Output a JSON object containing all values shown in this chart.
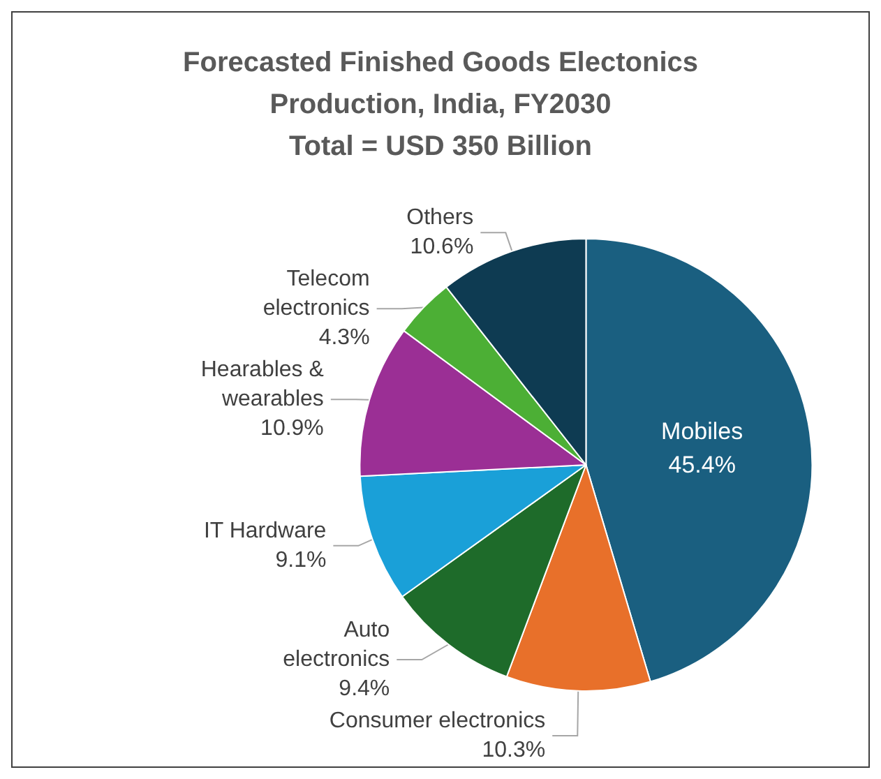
{
  "chart_data": {
    "type": "pie",
    "title": "Forecasted Finished Goods Electonics\nProduction, India, FY2030\nTotal = USD 350 Billion",
    "categories": [
      "Mobiles",
      "Consumer electronics",
      "Auto\nelectronics",
      "IT Hardware",
      "Hearables &\nwearables",
      "Telecom\nelectronics",
      "Others"
    ],
    "values": [
      45.4,
      10.3,
      9.4,
      9.1,
      10.9,
      4.3,
      10.6
    ],
    "colors": [
      "#1a5f80",
      "#e8702a",
      "#1e6b2a",
      "#1aa0d8",
      "#9b2f95",
      "#4caf35",
      "#0e3b52"
    ],
    "value_labels": [
      "45.4%",
      "10.3%",
      "9.4%",
      "9.1%",
      "10.9%",
      "4.3%",
      "10.6%"
    ],
    "legend": false
  }
}
